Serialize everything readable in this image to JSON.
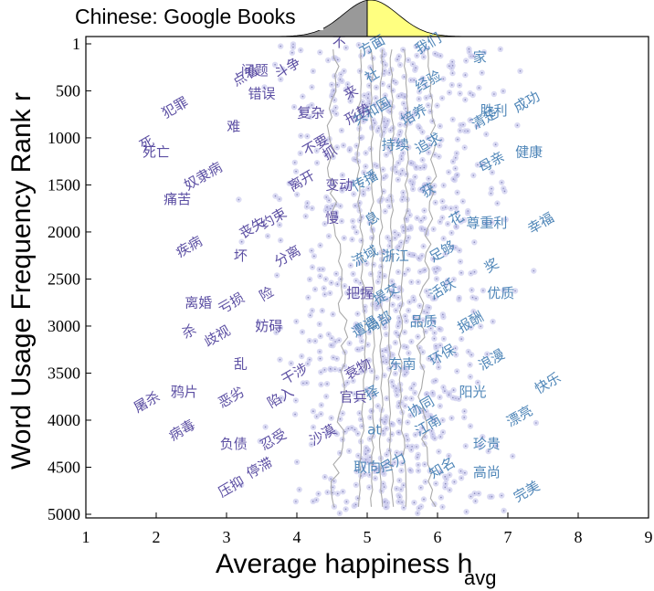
{
  "chart_data": {
    "type": "scatter",
    "title": "Chinese: Google Books",
    "xlabel_main": "Average happiness h",
    "xlabel_sub": "avg",
    "ylabel": "Word Usage Frequency Rank r",
    "xlim": [
      1,
      9
    ],
    "ylim": [
      1,
      5000
    ],
    "y_inverted": true,
    "xticks": [
      "1",
      "2",
      "3",
      "4",
      "5",
      "6",
      "7",
      "8",
      "9"
    ],
    "yticks": [
      "1",
      "500",
      "1000",
      "1500",
      "2000",
      "2500",
      "3000",
      "3500",
      "4000",
      "4500",
      "5000"
    ],
    "grid": false,
    "median": 5.0,
    "colors": {
      "negative": "#5c4fa3",
      "positive": "#4f86b8",
      "marginal_left": "#999999",
      "marginal_right": "#ffff80",
      "dots": "#ccccee",
      "lines": "#aaaaaa"
    },
    "words": [
      {
        "t": "不",
        "h": 4.6,
        "r": 30
      },
      {
        "t": "方面",
        "h": 5.1,
        "r": 60
      },
      {
        "t": "我们",
        "h": 5.9,
        "r": 40
      },
      {
        "t": "家",
        "h": 6.6,
        "r": 190
      },
      {
        "t": "斗争",
        "h": 3.9,
        "r": 300
      },
      {
        "t": "点着",
        "h": 3.3,
        "r": 380
      },
      {
        "t": "问题",
        "h": 3.4,
        "r": 330
      },
      {
        "t": "社",
        "h": 5.1,
        "r": 380
      },
      {
        "t": "经验",
        "h": 5.9,
        "r": 440
      },
      {
        "t": "错误",
        "h": 3.5,
        "r": 580
      },
      {
        "t": "来",
        "h": 4.8,
        "r": 560
      },
      {
        "t": "犯罪",
        "h": 2.3,
        "r": 720
      },
      {
        "t": "复杂",
        "h": 4.2,
        "r": 780
      },
      {
        "t": "共和国",
        "h": 5.1,
        "r": 760
      },
      {
        "t": "培养",
        "h": 5.7,
        "r": 800
      },
      {
        "t": "胜利",
        "h": 6.8,
        "r": 760
      },
      {
        "t": "成功",
        "h": 7.3,
        "r": 660
      },
      {
        "t": "形势",
        "h": 4.9,
        "r": 790
      },
      {
        "t": "难",
        "h": 3.1,
        "r": 930
      },
      {
        "t": "清楚",
        "h": 6.7,
        "r": 840
      },
      {
        "t": "死",
        "h": 1.9,
        "r": 1100
      },
      {
        "t": "死亡",
        "h": 2.0,
        "r": 1200
      },
      {
        "t": "抓",
        "h": 4.5,
        "r": 1200
      },
      {
        "t": "不要",
        "h": 4.3,
        "r": 1120
      },
      {
        "t": "持续",
        "h": 5.4,
        "r": 1120
      },
      {
        "t": "追求",
        "h": 5.9,
        "r": 1100
      },
      {
        "t": "母亲",
        "h": 6.8,
        "r": 1300
      },
      {
        "t": "健康",
        "h": 7.3,
        "r": 1200
      },
      {
        "t": "奴隶病",
        "h": 2.7,
        "r": 1450
      },
      {
        "t": "离开",
        "h": 4.1,
        "r": 1500
      },
      {
        "t": "变动",
        "h": 4.6,
        "r": 1550
      },
      {
        "t": "传播",
        "h": 5.0,
        "r": 1500
      },
      {
        "t": "获",
        "h": 5.9,
        "r": 1600
      },
      {
        "t": "痛苦",
        "h": 2.3,
        "r": 1700
      },
      {
        "t": "丧失",
        "h": 3.4,
        "r": 2000
      },
      {
        "t": "约束",
        "h": 3.7,
        "r": 1900
      },
      {
        "t": "慢",
        "h": 4.5,
        "r": 1900
      },
      {
        "t": "息",
        "h": 5.1,
        "r": 1900
      },
      {
        "t": "花",
        "h": 6.3,
        "r": 1900
      },
      {
        "t": "尊重利",
        "h": 6.7,
        "r": 1950
      },
      {
        "t": "幸福",
        "h": 7.5,
        "r": 1950
      },
      {
        "t": "疾病",
        "h": 2.5,
        "r": 2200
      },
      {
        "t": "坏",
        "h": 3.2,
        "r": 2300
      },
      {
        "t": "分离",
        "h": 3.9,
        "r": 2300
      },
      {
        "t": "流域",
        "h": 5.0,
        "r": 2300
      },
      {
        "t": "浙江",
        "h": 5.4,
        "r": 2300
      },
      {
        "t": "足够",
        "h": 6.1,
        "r": 2250
      },
      {
        "t": "奖",
        "h": 6.8,
        "r": 2400
      },
      {
        "t": "离婚",
        "h": 2.6,
        "r": 2800
      },
      {
        "t": "亏损",
        "h": 3.1,
        "r": 2800
      },
      {
        "t": "险",
        "h": 3.6,
        "r": 2700
      },
      {
        "t": "把握",
        "h": 4.9,
        "r": 2700
      },
      {
        "t": "提交",
        "h": 5.3,
        "r": 2700
      },
      {
        "t": "活跃",
        "h": 6.1,
        "r": 2650
      },
      {
        "t": "优质",
        "h": 6.9,
        "r": 2700
      },
      {
        "t": "杀",
        "h": 2.5,
        "r": 3100
      },
      {
        "t": "歧视",
        "h": 2.9,
        "r": 3150
      },
      {
        "t": "妨碍",
        "h": 3.6,
        "r": 3050
      },
      {
        "t": "遭遇",
        "h": 5.0,
        "r": 3050
      },
      {
        "t": "局部",
        "h": 5.2,
        "r": 3000
      },
      {
        "t": "品质",
        "h": 5.8,
        "r": 3000
      },
      {
        "t": "报酬",
        "h": 6.5,
        "r": 3000
      },
      {
        "t": "浪漫",
        "h": 6.8,
        "r": 3400
      },
      {
        "t": "乱",
        "h": 3.2,
        "r": 3450
      },
      {
        "t": "干涉",
        "h": 4.0,
        "r": 3550
      },
      {
        "t": "衰物",
        "h": 4.9,
        "r": 3500
      },
      {
        "t": "东南",
        "h": 5.5,
        "r": 3450
      },
      {
        "t": "环保",
        "h": 6.1,
        "r": 3350
      },
      {
        "t": "屠杀",
        "h": 1.9,
        "r": 3850
      },
      {
        "t": "鸦片",
        "h": 2.4,
        "r": 3750
      },
      {
        "t": "恶劣",
        "h": 3.1,
        "r": 3800
      },
      {
        "t": "陷入",
        "h": 3.8,
        "r": 3800
      },
      {
        "t": "官兵",
        "h": 4.8,
        "r": 3800
      },
      {
        "t": "择",
        "h": 5.1,
        "r": 3750
      },
      {
        "t": "协同",
        "h": 5.8,
        "r": 3900
      },
      {
        "t": "阳光",
        "h": 6.5,
        "r": 3750
      },
      {
        "t": "快乐",
        "h": 7.6,
        "r": 3650
      },
      {
        "t": "病毒",
        "h": 2.4,
        "r": 4150
      },
      {
        "t": "负债",
        "h": 3.1,
        "r": 4300
      },
      {
        "t": "忍受",
        "h": 3.7,
        "r": 4250
      },
      {
        "t": "沙漠",
        "h": 4.4,
        "r": 4200
      },
      {
        "t": "at",
        "h": 5.1,
        "r": 4150
      },
      {
        "t": "江南",
        "h": 5.9,
        "r": 4100
      },
      {
        "t": "漂亮",
        "h": 7.2,
        "r": 4000
      },
      {
        "t": "珍贵",
        "h": 6.7,
        "r": 4300
      },
      {
        "t": "压抑",
        "h": 3.1,
        "r": 4750
      },
      {
        "t": "停滞",
        "h": 3.5,
        "r": 4550
      },
      {
        "t": "取向",
        "h": 5.0,
        "r": 4550
      },
      {
        "t": "尽力",
        "h": 5.4,
        "r": 4500
      },
      {
        "t": "知名",
        "h": 6.1,
        "r": 4550
      },
      {
        "t": "高尚",
        "h": 6.7,
        "r": 4600
      },
      {
        "t": "完美",
        "h": 7.3,
        "r": 4800
      }
    ]
  }
}
